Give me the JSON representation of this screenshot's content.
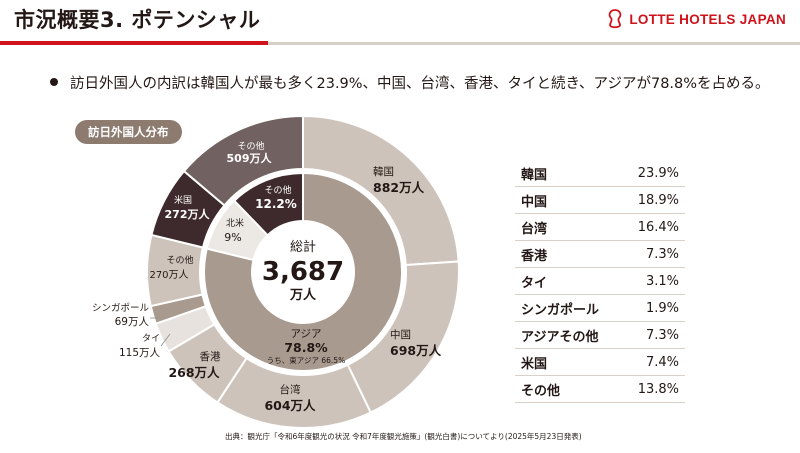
{
  "header": {
    "title": "市況概要3. ポテンシャル",
    "brand": "LOTTE HOTELS JAPAN"
  },
  "bullet": "訪日外国人の内訳は韓国人が最も多く23.9%、中国、台湾、香港、タイと続き、アジアが78.8%を占める。",
  "chart_badge": "訪日外国人分布",
  "center": {
    "label": "総計",
    "value": "3,687",
    "unit": "万人"
  },
  "colors": {
    "brand_red": "#d0121b",
    "asia": "#a89a8e",
    "asia_light": "#cdc3ba",
    "north_america": "#3e2a2c",
    "other": "#716261"
  },
  "chart_data": {
    "type": "pie",
    "title": "訪日外国人分布",
    "total": 3687,
    "unit": "万人",
    "outer_ring": [
      {
        "name": "韓国",
        "value": 882
      },
      {
        "name": "中国",
        "value": 698
      },
      {
        "name": "台湾",
        "value": 604
      },
      {
        "name": "香港",
        "value": 268
      },
      {
        "name": "タイ",
        "value": 115
      },
      {
        "name": "シンガポール",
        "value": 69
      },
      {
        "name": "その他",
        "value": 270
      },
      {
        "name": "米国",
        "value": 272
      },
      {
        "name": "その他",
        "value": 509
      }
    ],
    "inner_ring": [
      {
        "name": "アジア",
        "percent": 78.8,
        "note": "うち、東アジア 66.5%"
      },
      {
        "name": "北米",
        "percent": 9
      },
      {
        "name": "その他",
        "percent": 12.2
      }
    ],
    "outer_labels": [
      {
        "name": "韓国",
        "text": "882万人"
      },
      {
        "name": "中国",
        "text": "698万人"
      },
      {
        "name": "台湾",
        "text": "604万人"
      },
      {
        "name": "香港",
        "text": "268万人"
      },
      {
        "name": "タイ",
        "text": "115万人"
      },
      {
        "name": "シンガポール",
        "text": "69万人"
      },
      {
        "name": "その他",
        "text": "270万人"
      },
      {
        "name": "米国",
        "text": "272万人"
      },
      {
        "name": "その他",
        "text": "509万人"
      }
    ],
    "inner_labels": [
      {
        "name": "アジア",
        "text": "78.8%"
      },
      {
        "name": "北米",
        "text": "9%"
      },
      {
        "name": "その他",
        "text": "12.2%"
      }
    ]
  },
  "stats_table": [
    {
      "label": "韓国",
      "value": "23.9%"
    },
    {
      "label": "中国",
      "value": "18.9%"
    },
    {
      "label": "台湾",
      "value": "16.4%"
    },
    {
      "label": "香港",
      "value": "7.3%"
    },
    {
      "label": "タイ",
      "value": "3.1%"
    },
    {
      "label": "シンガポール",
      "value": "1.9%"
    },
    {
      "label": "アジアその他",
      "value": "7.3%"
    },
    {
      "label": "米国",
      "value": "7.4%"
    },
    {
      "label": "その他",
      "value": "13.8%"
    }
  ],
  "source": "出典：観光庁「令和6年度観光の状況 令和7年度観光施策」(観光白書)についてより(2025年5月23日発表)"
}
